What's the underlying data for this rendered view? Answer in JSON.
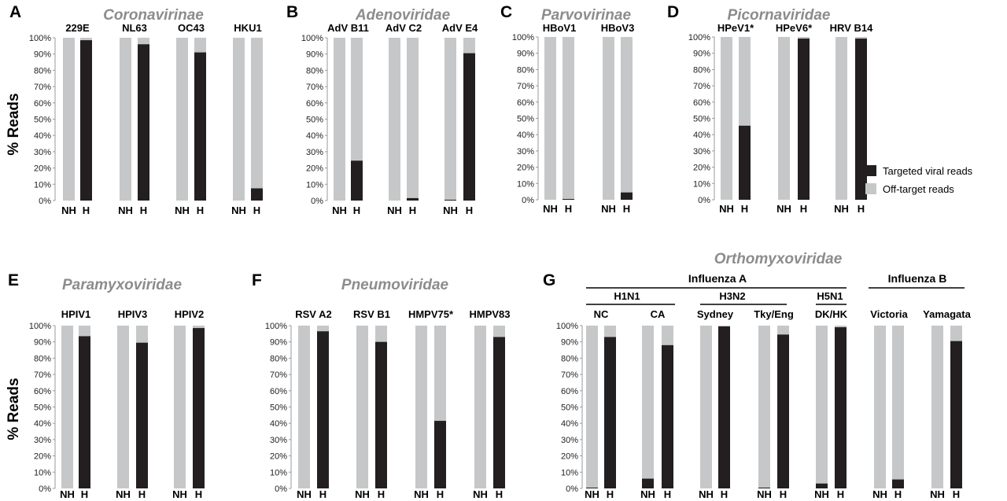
{
  "colors": {
    "targeted": "#231f20",
    "offtarget": "#c6c7c8",
    "title": "#8c8c8c"
  },
  "legend": {
    "targeted": "Targeted viral reads",
    "offtarget": "Off-target reads"
  },
  "y_axis_label": "% Reads",
  "y_ticks": [
    "0%",
    "10%",
    "20%",
    "30%",
    "40%",
    "50%",
    "60%",
    "70%",
    "80%",
    "90%",
    "100%"
  ],
  "x_categories": [
    "NH",
    "H"
  ],
  "chart_data": [
    {
      "type": "bar",
      "stacked": true,
      "panel": "A",
      "title": "Coronavirinae",
      "ylim": [
        0,
        100
      ],
      "groups": [
        {
          "name": "229E",
          "NH": 0,
          "H": 98.5
        },
        {
          "name": "NL63",
          "NH": 0,
          "H": 96
        },
        {
          "name": "OC43",
          "NH": 0,
          "H": 91
        },
        {
          "name": "HKU1",
          "NH": 0,
          "H": 7.5
        }
      ]
    },
    {
      "type": "bar",
      "stacked": true,
      "panel": "B",
      "title": "Adenoviridae",
      "ylim": [
        0,
        100
      ],
      "groups": [
        {
          "name": "AdV B11",
          "NH": 0,
          "H": 24.5
        },
        {
          "name": "AdV C2",
          "NH": 0,
          "H": 1.5
        },
        {
          "name": "AdV E4",
          "NH": 0.5,
          "H": 90.5
        }
      ]
    },
    {
      "type": "bar",
      "stacked": true,
      "panel": "C",
      "title": "Parvovirinae",
      "ylim": [
        0,
        100
      ],
      "groups": [
        {
          "name": "HBoV1",
          "NH": 0,
          "H": 0.5
        },
        {
          "name": "HBoV3",
          "NH": 0,
          "H": 4.5
        }
      ]
    },
    {
      "type": "bar",
      "stacked": true,
      "panel": "D",
      "title": "Picornaviridae",
      "ylim": [
        0,
        100
      ],
      "groups": [
        {
          "name": "HPeV1*",
          "NH": 0,
          "H": 45.5
        },
        {
          "name": "HPeV6*",
          "NH": 0,
          "H": 99
        },
        {
          "name": "HRV B14",
          "NH": 0,
          "H": 99
        }
      ]
    },
    {
      "type": "bar",
      "stacked": true,
      "panel": "E",
      "title": "Paramyxoviridae",
      "ylim": [
        0,
        100
      ],
      "groups": [
        {
          "name": "HPIV1",
          "NH": 0,
          "H": 93.5
        },
        {
          "name": "HPIV3",
          "NH": 0,
          "H": 89.5
        },
        {
          "name": "HPIV2",
          "NH": 0,
          "H": 98.5
        }
      ]
    },
    {
      "type": "bar",
      "stacked": true,
      "panel": "F",
      "title": "Pneumoviridae",
      "ylim": [
        0,
        100
      ],
      "groups": [
        {
          "name": "RSV A2",
          "NH": 0,
          "H": 96.5
        },
        {
          "name": "RSV B1",
          "NH": 0,
          "H": 90
        },
        {
          "name": "HMPV75*",
          "NH": 0,
          "H": 41.5
        },
        {
          "name": "HMPV83",
          "NH": 0,
          "H": 93
        }
      ]
    },
    {
      "type": "bar",
      "stacked": true,
      "panel": "G",
      "title": "Orthomyxoviridae",
      "ylim": [
        0,
        100
      ],
      "group_headers": [
        {
          "label": "Influenza A",
          "sub": [
            {
              "label": "H1N1",
              "strains": [
                "NC",
                "CA"
              ]
            },
            {
              "label": "H3N2",
              "strains": [
                "Sydney",
                "Tky/Eng"
              ]
            },
            {
              "label": "H5N1",
              "strains": [
                "DK/HK"
              ]
            }
          ]
        },
        {
          "label": "Influenza B",
          "strains": [
            "Victoria",
            "Yamagata"
          ]
        }
      ],
      "groups": [
        {
          "name": "NC",
          "NH": 0.5,
          "H": 93
        },
        {
          "name": "CA",
          "NH": 6,
          "H": 88
        },
        {
          "name": "Sydney",
          "NH": 0,
          "H": 99.5
        },
        {
          "name": "Tky/Eng",
          "NH": 0.5,
          "H": 94.5
        },
        {
          "name": "DK/HK",
          "NH": 3,
          "H": 99
        },
        {
          "name": "Victoria",
          "NH": 0,
          "H": 5.5
        },
        {
          "name": "Yamagata",
          "NH": 0,
          "H": 90.5
        }
      ]
    }
  ]
}
